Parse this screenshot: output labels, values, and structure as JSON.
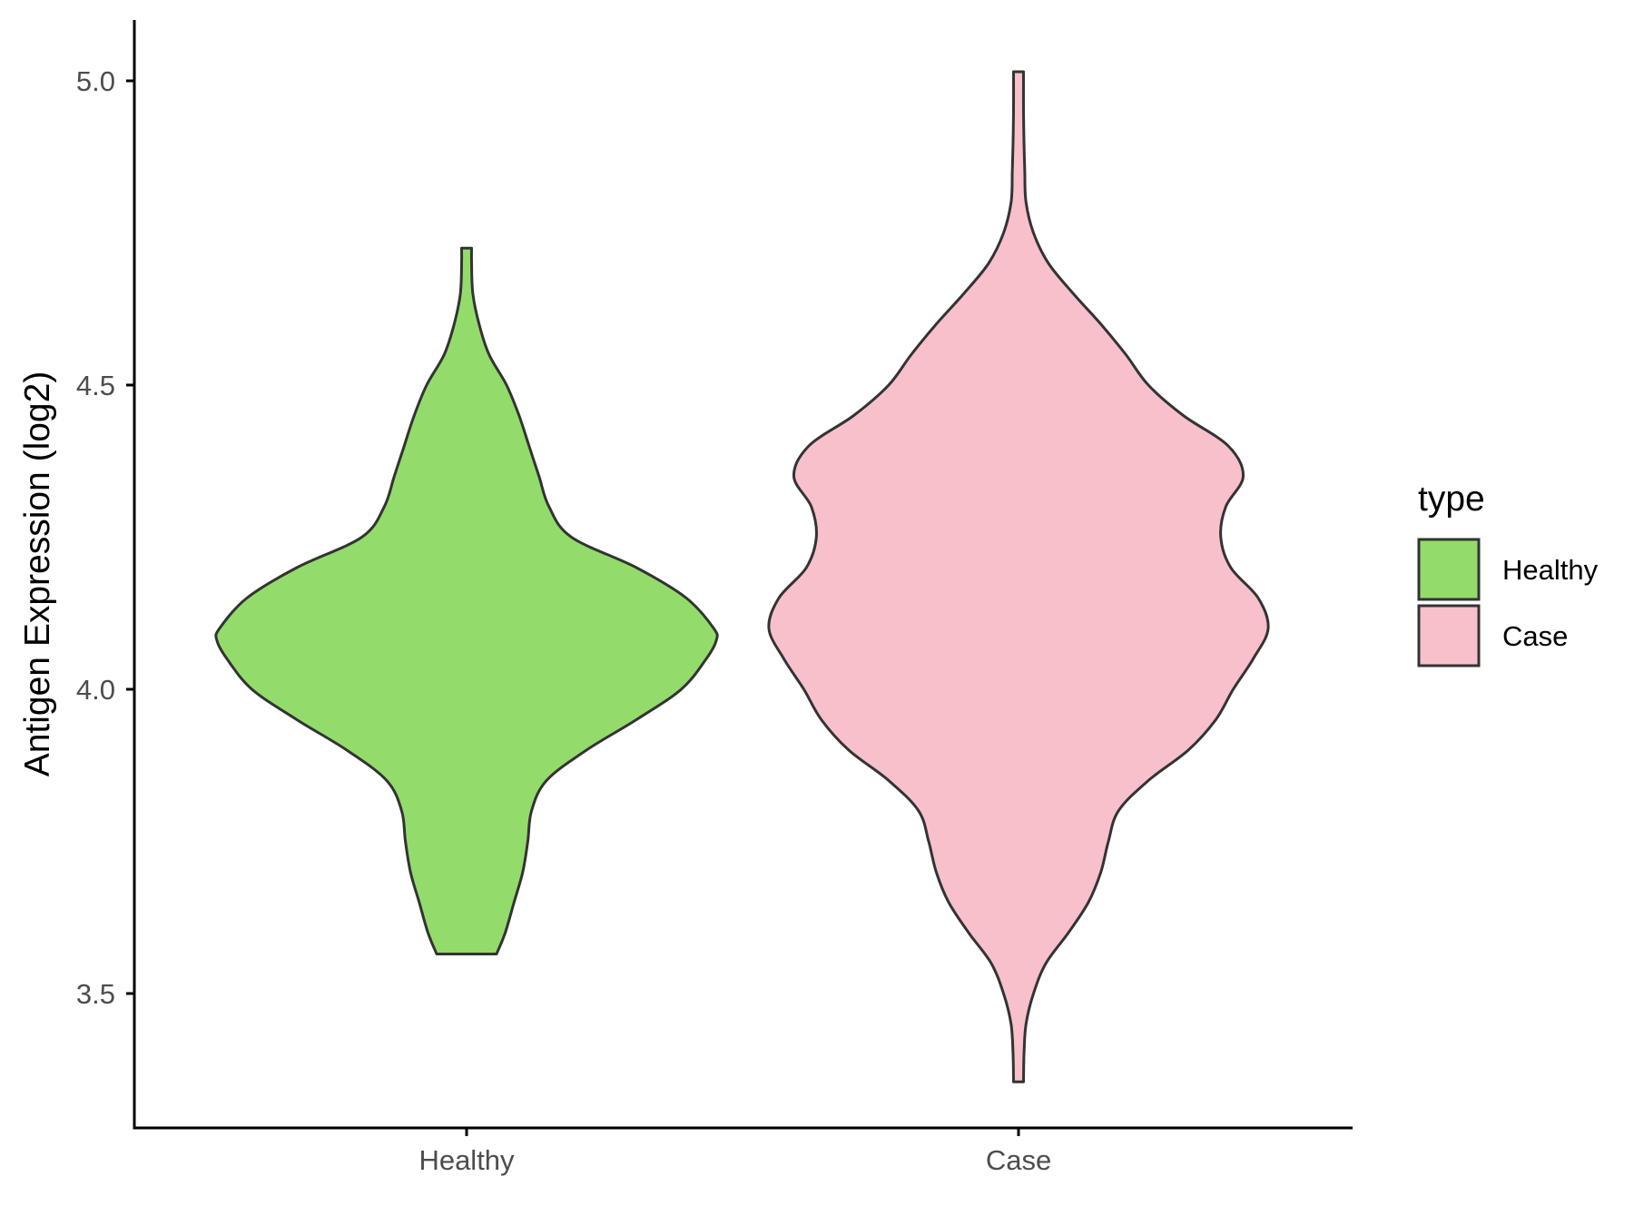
{
  "chart_data": {
    "type": "violin",
    "title": "",
    "xlabel": "",
    "ylabel": "Antigen Expression (log2)",
    "ylim": [
      3.3,
      5.1
    ],
    "yticks": [
      "3.5",
      "4.0",
      "4.5",
      "5.0"
    ],
    "categories": [
      "Healthy",
      "Case"
    ],
    "legend": {
      "title": "type",
      "position": "right",
      "entries": [
        {
          "label": "Healthy",
          "color": "#93DC6B"
        },
        {
          "label": "Case",
          "color": "#F8C0CB"
        }
      ]
    },
    "series": [
      {
        "category": "Healthy",
        "color": "#93DC6B",
        "ymin": 3.565,
        "ymax": 4.725,
        "profile": [
          [
            3.565,
            0.12
          ],
          [
            3.6,
            0.155
          ],
          [
            3.65,
            0.19
          ],
          [
            3.7,
            0.225
          ],
          [
            3.75,
            0.245
          ],
          [
            3.8,
            0.26
          ],
          [
            3.85,
            0.32
          ],
          [
            3.9,
            0.48
          ],
          [
            3.95,
            0.68
          ],
          [
            4.0,
            0.86
          ],
          [
            4.05,
            0.96
          ],
          [
            4.08,
            1.0
          ],
          [
            4.1,
            0.99
          ],
          [
            4.15,
            0.88
          ],
          [
            4.2,
            0.68
          ],
          [
            4.25,
            0.42
          ],
          [
            4.3,
            0.33
          ],
          [
            4.35,
            0.29
          ],
          [
            4.4,
            0.25
          ],
          [
            4.45,
            0.21
          ],
          [
            4.5,
            0.16
          ],
          [
            4.55,
            0.09
          ],
          [
            4.6,
            0.05
          ],
          [
            4.65,
            0.025
          ],
          [
            4.7,
            0.02
          ],
          [
            4.725,
            0.02
          ]
        ]
      },
      {
        "category": "Case",
        "color": "#F8C0CB",
        "ymin": 3.355,
        "ymax": 5.015,
        "profile": [
          [
            3.355,
            0.02
          ],
          [
            3.4,
            0.022
          ],
          [
            3.45,
            0.03
          ],
          [
            3.5,
            0.06
          ],
          [
            3.55,
            0.11
          ],
          [
            3.6,
            0.2
          ],
          [
            3.65,
            0.28
          ],
          [
            3.7,
            0.33
          ],
          [
            3.75,
            0.36
          ],
          [
            3.8,
            0.4
          ],
          [
            3.85,
            0.52
          ],
          [
            3.9,
            0.68
          ],
          [
            3.95,
            0.79
          ],
          [
            4.0,
            0.86
          ],
          [
            4.05,
            0.94
          ],
          [
            4.1,
            1.0
          ],
          [
            4.15,
            0.96
          ],
          [
            4.2,
            0.85
          ],
          [
            4.25,
            0.81
          ],
          [
            4.3,
            0.83
          ],
          [
            4.35,
            0.9
          ],
          [
            4.4,
            0.84
          ],
          [
            4.45,
            0.66
          ],
          [
            4.5,
            0.52
          ],
          [
            4.55,
            0.43
          ],
          [
            4.6,
            0.33
          ],
          [
            4.65,
            0.22
          ],
          [
            4.7,
            0.12
          ],
          [
            4.75,
            0.06
          ],
          [
            4.8,
            0.03
          ],
          [
            4.85,
            0.025
          ],
          [
            4.9,
            0.022
          ],
          [
            4.95,
            0.02
          ],
          [
            5.015,
            0.02
          ]
        ]
      }
    ]
  }
}
